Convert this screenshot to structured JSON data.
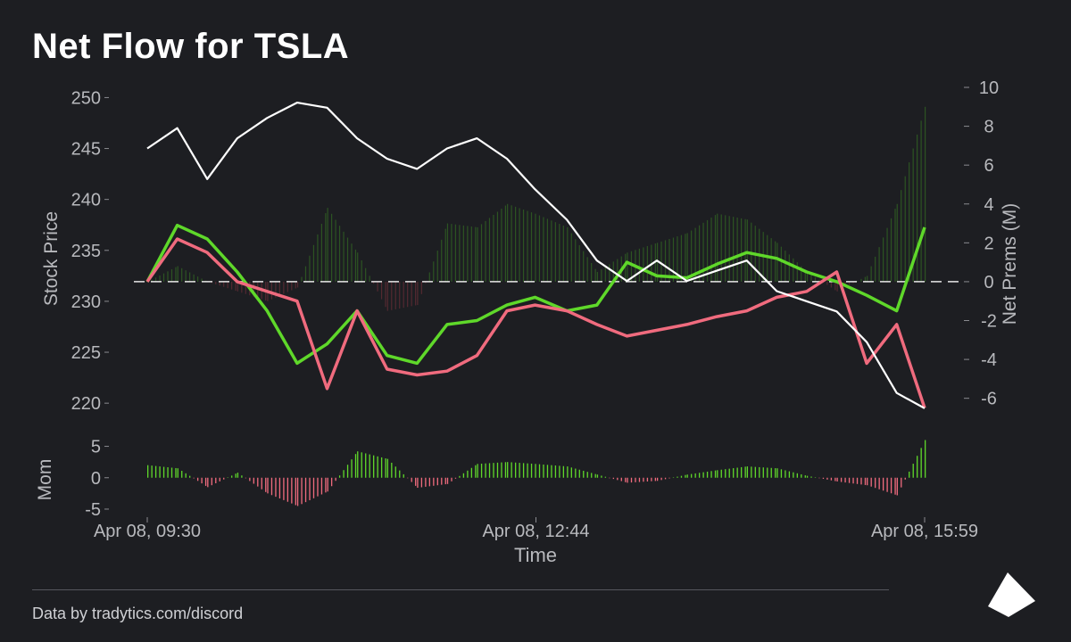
{
  "title": "Net Flow for TSLA",
  "footer": "Data by tradytics.com/discord",
  "colors": {
    "background": "#1d1e22",
    "price": "#ffffff",
    "bullish": "#5fd82a",
    "bearish": "#f06b7e",
    "axis_text": "#b8b9bd"
  },
  "chart_data": [
    {
      "type": "line",
      "title": "Net Flow for TSLA",
      "x_axis": {
        "label": "Time",
        "ticks": [
          "Apr 08, 09:30",
          "Apr 08, 12:44",
          "Apr 08, 15:59"
        ]
      },
      "left_axis": {
        "label": "Stock Price",
        "range": [
          218,
          251
        ],
        "ticks": [
          220,
          225,
          230,
          235,
          240,
          245,
          250
        ]
      },
      "right_axis": {
        "label": "Net Prems (M)",
        "range": [
          -7.3,
          10
        ],
        "ticks": [
          -6,
          -4,
          -2,
          0,
          2,
          4,
          6,
          8,
          10
        ]
      },
      "x": [
        0,
        15,
        30,
        45,
        60,
        75,
        90,
        105,
        120,
        135,
        150,
        165,
        180,
        194,
        210,
        225,
        240,
        255,
        270,
        285,
        300,
        315,
        330,
        345,
        360,
        375,
        389
      ],
      "series": [
        {
          "axis": "left",
          "color": "#ffffff",
          "values": [
            245,
            247,
            242,
            246,
            248,
            249.5,
            249,
            246,
            244,
            243,
            245,
            246,
            244,
            241,
            238,
            234,
            232,
            234,
            232,
            233,
            234,
            231,
            230,
            229,
            226,
            221,
            219.5
          ]
        },
        {
          "axis": "right",
          "color": "#5fd82a",
          "values": [
            0,
            2.9,
            2.2,
            0.5,
            -1.5,
            -4.2,
            -3.2,
            -1.5,
            -3.8,
            -4.2,
            -2.2,
            -2.0,
            -1.2,
            -0.8,
            -1.5,
            -1.2,
            1.0,
            0.3,
            0.2,
            0.9,
            1.5,
            1.2,
            0.5,
            0,
            -0.7,
            -1.5,
            2.8
          ]
        },
        {
          "axis": "right",
          "color": "#f06b7e",
          "values": [
            0,
            2.2,
            1.5,
            0,
            -0.5,
            -1.0,
            -5.5,
            -1.5,
            -4.5,
            -4.8,
            -4.6,
            -3.8,
            -1.5,
            -1.2,
            -1.5,
            -2.2,
            -2.8,
            -2.5,
            -2.2,
            -1.8,
            -1.5,
            -0.8,
            -0.5,
            0.5,
            -4.2,
            -2.2,
            -6.5
          ]
        },
        {
          "axis": "right",
          "type": "bar",
          "name_hint": "net_prem_bars",
          "values": [
            0,
            0.8,
            0,
            -0.5,
            -1.0,
            -0.3,
            3.8,
            1.5,
            -1.5,
            -1.2,
            3.0,
            2.8,
            4.0,
            3.5,
            2.8,
            0.5,
            1.5,
            2.0,
            2.5,
            3.5,
            3.2,
            2.0,
            0.5,
            -0.5,
            0.3,
            4.0,
            9.0
          ]
        }
      ],
      "zero_line": true,
      "grid": false
    },
    {
      "type": "bar",
      "axis_label": "Mom",
      "y_ticks": [
        -5,
        0,
        5
      ],
      "range": [
        -6,
        6.5
      ],
      "x": [
        0,
        15,
        30,
        45,
        60,
        75,
        90,
        105,
        120,
        135,
        150,
        165,
        180,
        194,
        210,
        225,
        240,
        255,
        270,
        285,
        300,
        315,
        330,
        345,
        360,
        375,
        389
      ],
      "values": [
        2,
        1.5,
        -1.5,
        0.8,
        -2.5,
        -4.5,
        -2.2,
        4.2,
        3,
        -1.6,
        -1.0,
        2.2,
        2.5,
        2.2,
        1.8,
        0.5,
        -0.8,
        -0.5,
        0.5,
        1.2,
        1.8,
        1.5,
        0.3,
        -0.6,
        -1.2,
        -2.8,
        6.0
      ]
    }
  ]
}
